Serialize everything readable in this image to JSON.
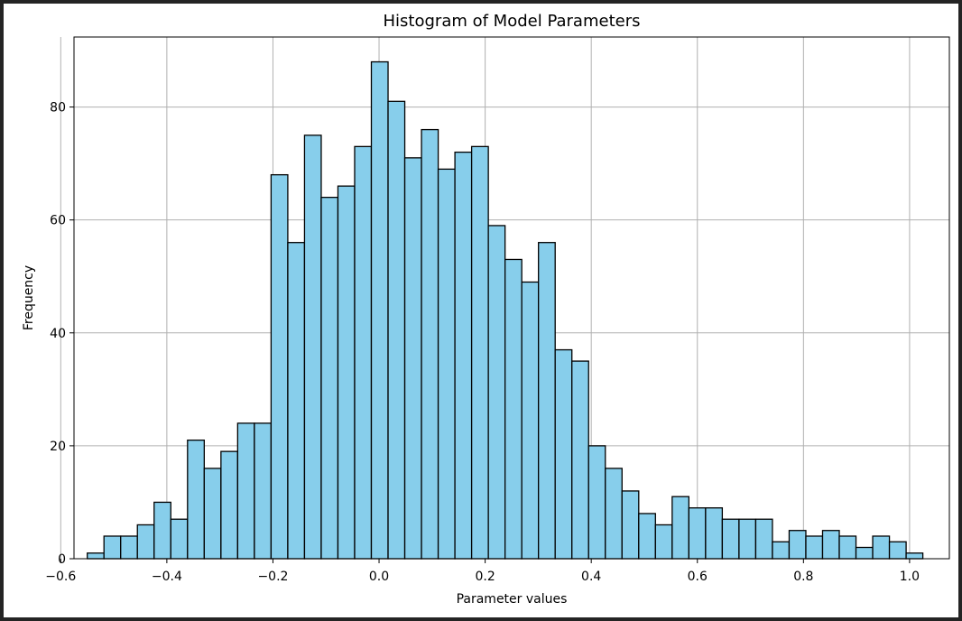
{
  "chart_data": {
    "type": "bar",
    "title": "Histogram of Model Parameters",
    "xlabel": "Parameter values",
    "ylabel": "Frequency",
    "bin_start": -0.55,
    "bin_width": 0.0315,
    "values": [
      1,
      4,
      4,
      6,
      10,
      7,
      21,
      16,
      19,
      24,
      24,
      68,
      56,
      75,
      64,
      66,
      73,
      88,
      81,
      71,
      76,
      69,
      72,
      73,
      59,
      53,
      49,
      56,
      37,
      35,
      20,
      16,
      12,
      8,
      6,
      11,
      9,
      9,
      7,
      7,
      7,
      3,
      5,
      4,
      5,
      4,
      2,
      4,
      3,
      1
    ],
    "xlim": [
      -0.575,
      1.075
    ],
    "ylim": [
      0,
      92.4
    ],
    "xticks": [
      -0.6,
      -0.4,
      -0.2,
      0.0,
      0.2,
      0.4,
      0.6,
      0.8,
      1.0
    ],
    "xtick_labels": [
      "−0.6",
      "−0.4",
      "−0.2",
      "0.0",
      "0.2",
      "0.4",
      "0.6",
      "0.8",
      "1.0"
    ],
    "yticks": [
      0,
      20,
      40,
      60,
      80
    ],
    "ytick_labels": [
      "0",
      "20",
      "40",
      "60",
      "80"
    ],
    "grid": true,
    "bar_color": "#87ceeb",
    "edge_color": "#000000",
    "frame_color": "#242424"
  }
}
